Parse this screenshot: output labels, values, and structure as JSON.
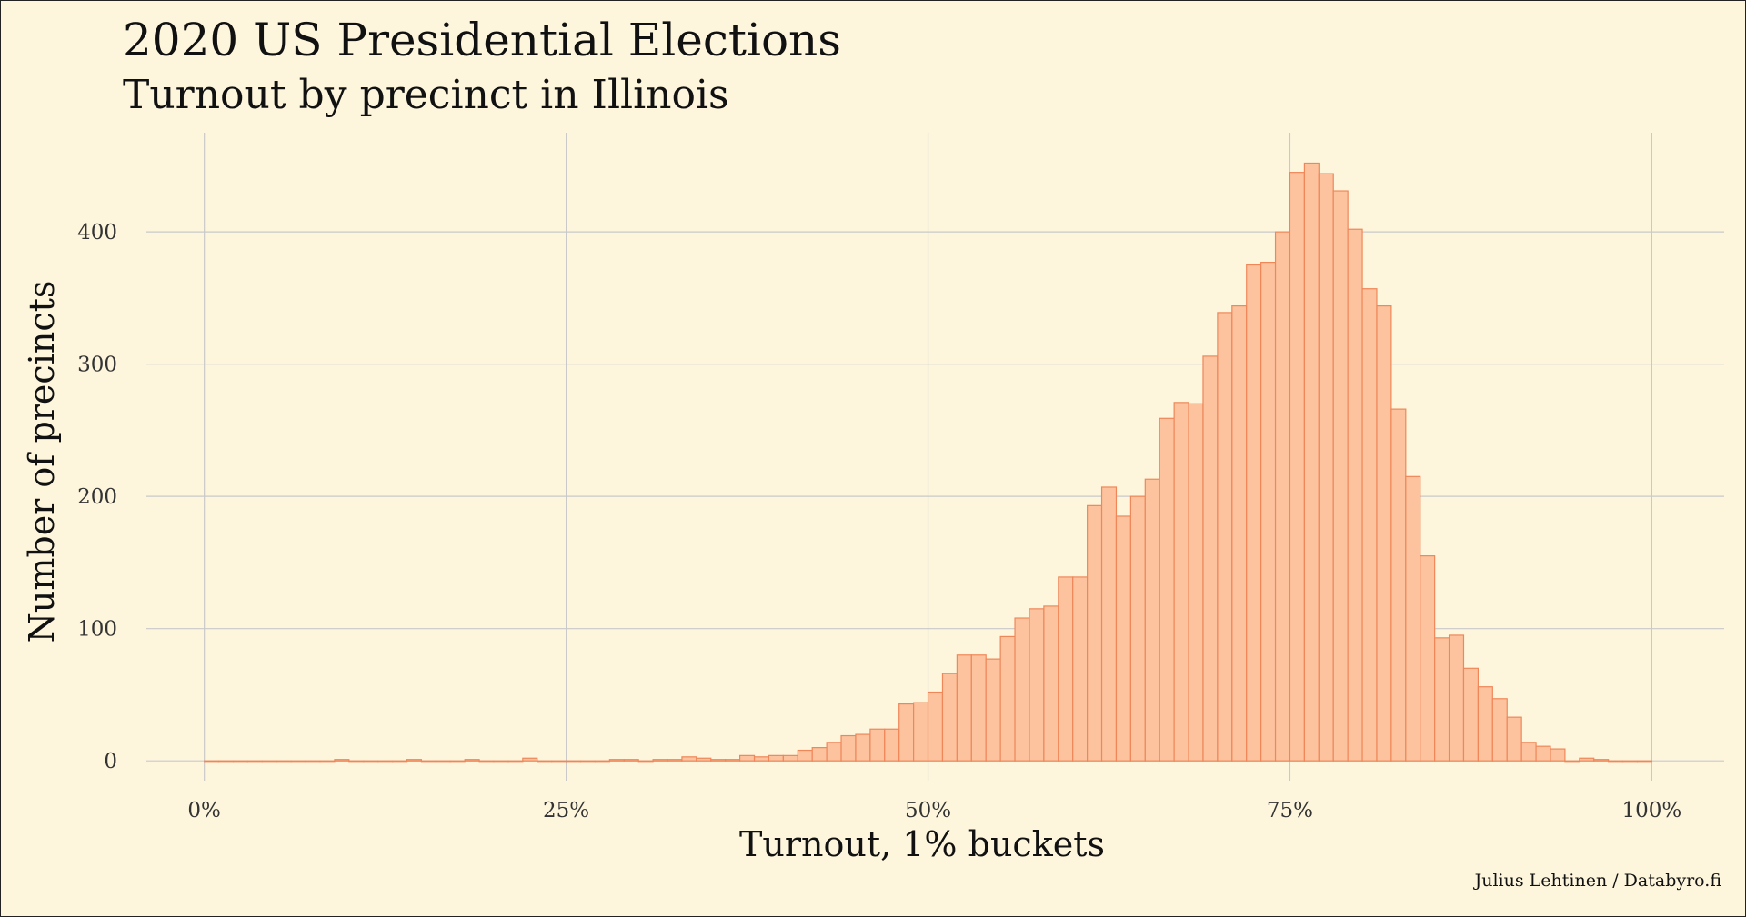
{
  "chart_data": {
    "type": "bar",
    "title": "2020 US Presidential Elections",
    "subtitle": "Turnout by precinct in Illinois",
    "xlabel": "Turnout, 1% buckets",
    "ylabel": "Number of precincts",
    "caption": "Julius Lehtinen / Databyro.fi",
    "xlim": [
      -4,
      105
    ],
    "ylim": [
      -15,
      475
    ],
    "x_ticks": [
      {
        "value": 0,
        "label": "0%"
      },
      {
        "value": 25,
        "label": "25%"
      },
      {
        "value": 50,
        "label": "50%"
      },
      {
        "value": 75,
        "label": "75%"
      },
      {
        "value": 100,
        "label": "100%"
      }
    ],
    "y_ticks": [
      {
        "value": 0,
        "label": "0"
      },
      {
        "value": 100,
        "label": "100"
      },
      {
        "value": 200,
        "label": "200"
      },
      {
        "value": 300,
        "label": "300"
      },
      {
        "value": 400,
        "label": "400"
      }
    ],
    "grid": true,
    "bar_color": "#fcc39e",
    "bar_edge_color": "#ef8759",
    "background": "#fdf6dd",
    "bins_start": [
      0,
      1,
      2,
      3,
      4,
      5,
      6,
      7,
      8,
      9,
      10,
      11,
      12,
      13,
      14,
      15,
      16,
      17,
      18,
      19,
      20,
      21,
      22,
      23,
      24,
      25,
      26,
      27,
      28,
      29,
      30,
      31,
      32,
      33,
      34,
      35,
      36,
      37,
      38,
      39,
      40,
      41,
      42,
      43,
      44,
      45,
      46,
      47,
      48,
      49,
      50,
      51,
      52,
      53,
      54,
      55,
      56,
      57,
      58,
      59,
      60,
      61,
      62,
      63,
      64,
      65,
      66,
      67,
      68,
      69,
      70,
      71,
      72,
      73,
      74,
      75,
      76,
      77,
      78,
      79,
      80,
      81,
      82,
      83,
      84,
      85,
      86,
      87,
      88,
      89,
      90,
      91,
      92,
      93,
      94,
      95,
      96,
      97,
      98,
      99
    ],
    "values": [
      0,
      0,
      0,
      0,
      0,
      0,
      0,
      0,
      0,
      1,
      0,
      0,
      0,
      0,
      1,
      0,
      0,
      0,
      1,
      0,
      0,
      0,
      2,
      0,
      0,
      0,
      0,
      0,
      1,
      1,
      0,
      1,
      1,
      3,
      2,
      1,
      1,
      4,
      3,
      4,
      4,
      8,
      10,
      14,
      19,
      20,
      24,
      24,
      43,
      44,
      52,
      66,
      80,
      80,
      77,
      94,
      108,
      115,
      117,
      139,
      139,
      193,
      207,
      185,
      200,
      213,
      259,
      271,
      270,
      306,
      339,
      344,
      375,
      377,
      400,
      445,
      452,
      444,
      431,
      402,
      357,
      344,
      266,
      215,
      155,
      93,
      95,
      70,
      56,
      47,
      33,
      14,
      11,
      9,
      0,
      2,
      1,
      0,
      0,
      0
    ]
  }
}
